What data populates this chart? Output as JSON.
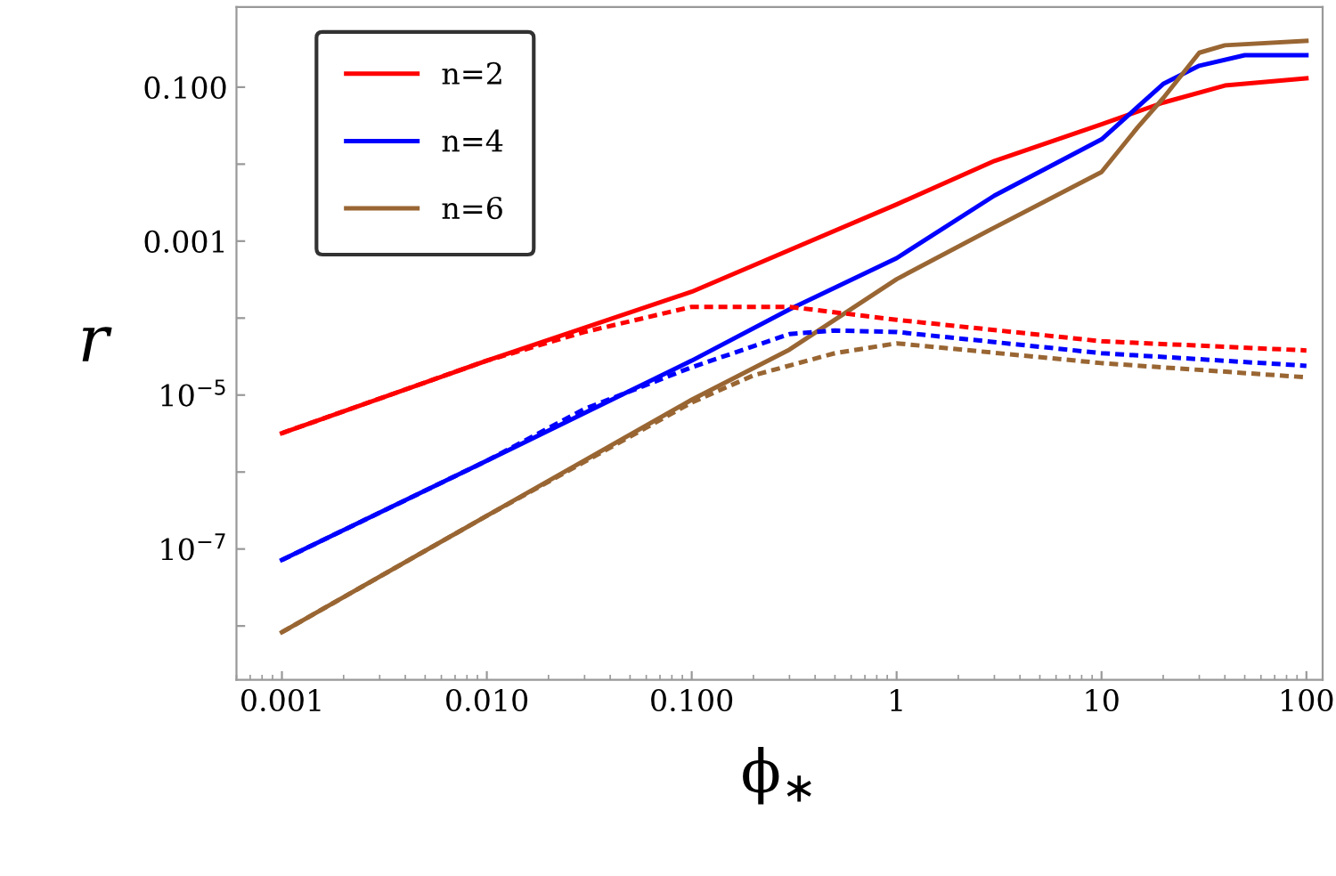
{
  "chart_data": {
    "type": "line",
    "xlabel": "ϕ$_{∗}$",
    "ylabel": "r",
    "log": "xy",
    "legend": "top left",
    "grid": false,
    "xlim": [
      0.0006,
      120
    ],
    "ylim": [
      2e-09,
      1.1
    ],
    "xticks": [
      {
        "value": 0.001,
        "label": "0.001"
      },
      {
        "value": 0.01,
        "label": "0.010"
      },
      {
        "value": 0.1,
        "label": "0.100"
      },
      1,
      10,
      100
    ],
    "yticks": [
      {
        "value": 1e-08,
        "label": null
      },
      {
        "value": 1e-07,
        "label": "10$^{−7}$"
      },
      {
        "value": 1e-06,
        "label": null
      },
      {
        "value": 1e-05,
        "label": "10$^{−5}$"
      },
      {
        "value": 0.0001,
        "label": null
      },
      {
        "value": 0.001,
        "label": "0.001"
      },
      {
        "value": 0.01,
        "label": null
      },
      {
        "value": 0.1,
        "label": "0.100"
      }
    ],
    "series": [
      {
        "name": "n=2",
        "color": "#ff0000",
        "line_style": "solid",
        "x": [
          0.001,
          0.01,
          0.1,
          1,
          3,
          10,
          20,
          40,
          100
        ],
        "values": [
          3.2e-06,
          2.8e-05,
          0.00022,
          0.003,
          0.011,
          0.033,
          0.063,
          0.105,
          0.13
        ]
      },
      {
        "name": "n=4",
        "color": "#0000ff",
        "line_style": "solid",
        "x": [
          0.001,
          0.01,
          0.1,
          0.3,
          1,
          3,
          10,
          20,
          30,
          50,
          100
        ],
        "values": [
          7.2e-08,
          1.4e-06,
          2.8e-05,
          0.00013,
          0.0006,
          0.0039,
          0.021,
          0.11,
          0.19,
          0.26,
          0.26
        ]
      },
      {
        "name": "n=6",
        "color": "#996633",
        "line_style": "solid",
        "x": [
          0.001,
          0.01,
          0.1,
          0.3,
          1,
          3,
          10,
          15,
          20,
          30,
          40,
          100
        ],
        "values": [
          8.3e-09,
          2.7e-07,
          8.7e-06,
          3.9e-05,
          0.00032,
          0.0015,
          0.0079,
          0.03,
          0.072,
          0.28,
          0.35,
          0.4
        ]
      },
      {
        "color": "#ff0000",
        "line_style": "dashed",
        "x": [
          0.001,
          0.01,
          0.03,
          0.1,
          0.3,
          1,
          10,
          100
        ],
        "values": [
          3.2e-06,
          2.8e-05,
          6.6e-05,
          0.00014,
          0.00014,
          9.5e-05,
          5e-05,
          3.8e-05
        ]
      },
      {
        "color": "#0000ff",
        "line_style": "dashed",
        "x": [
          0.001,
          0.01,
          0.03,
          0.1,
          0.3,
          0.5,
          1,
          10,
          100
        ],
        "values": [
          7.2e-08,
          1.4e-06,
          6.6e-06,
          2.3e-05,
          6.2e-05,
          6.9e-05,
          6.6e-05,
          3.5e-05,
          2.4e-05
        ]
      },
      {
        "color": "#996633",
        "line_style": "dashed",
        "x": [
          0.001,
          0.01,
          0.1,
          0.2,
          0.5,
          1,
          10,
          100
        ],
        "values": [
          8.3e-09,
          2.7e-07,
          8e-06,
          1.8e-05,
          3.5e-05,
          4.7e-05,
          2.6e-05,
          1.7e-05
        ]
      }
    ]
  }
}
